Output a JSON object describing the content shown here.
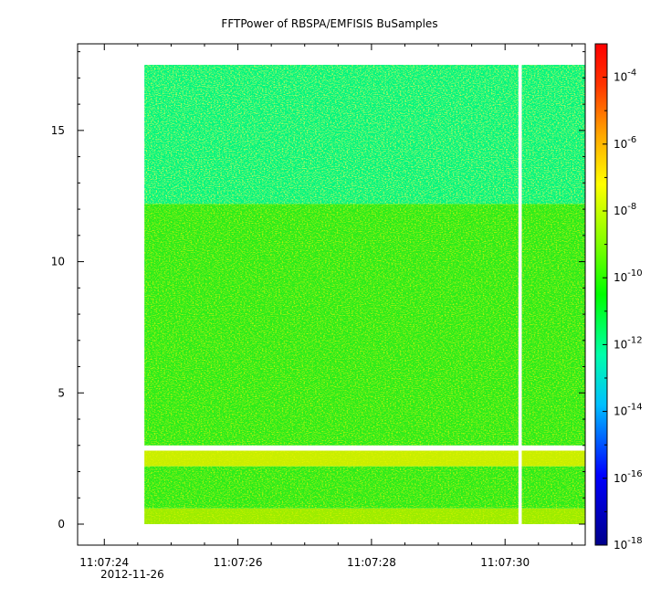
{
  "chart_data": {
    "type": "heatmap",
    "title": "FFTPower of RBSPA/EMFISIS  BuSamples",
    "xlabel": "",
    "ylabel": "",
    "date_label": "2012-11-26",
    "x_tick_labels": [
      "11:07:24",
      "11:07:26",
      "11:07:28",
      "11:07:30"
    ],
    "x_tick_values_seconds": [
      24,
      26,
      28,
      30
    ],
    "xlim_seconds": [
      23.6,
      31.2
    ],
    "y_ticks": [
      0,
      5,
      10,
      15
    ],
    "ylim": [
      -0.8,
      18.3
    ],
    "colorbar": {
      "scale": "log",
      "range": [
        1e-18,
        0.001
      ],
      "tick_exponents": [
        -18,
        -16,
        -14,
        -12,
        -10,
        -8,
        -6,
        -4
      ],
      "colors": [
        "#00008b",
        "#0000ff",
        "#00bfff",
        "#00ffaa",
        "#00ff00",
        "#7fff00",
        "#ffff00",
        "#ffa500",
        "#ff3300",
        "#ff0000"
      ]
    },
    "spectrogram": {
      "time_start_seconds": 24.6,
      "time_end_seconds": 31.2,
      "freq_min": 0.0,
      "freq_max": 17.5,
      "data_gap_seconds": [
        30.2,
        30.25
      ],
      "bands": [
        {
          "freq_range": [
            12.2,
            17.5
          ],
          "level_exponent": -12.5,
          "color": "#00f57f"
        },
        {
          "freq_range": [
            3.0,
            12.2
          ],
          "level_exponent": -10.3,
          "color": "#2bec1b"
        },
        {
          "freq_range": [
            2.2,
            2.8
          ],
          "level_exponent": -8.8,
          "color": "#c8ee00"
        },
        {
          "freq_range": [
            0.6,
            2.2
          ],
          "level_exponent": -10.3,
          "color": "#2bec1b"
        },
        {
          "freq_range": [
            0.0,
            0.6
          ],
          "level_exponent": -9.2,
          "color": "#9cec00"
        }
      ]
    }
  }
}
